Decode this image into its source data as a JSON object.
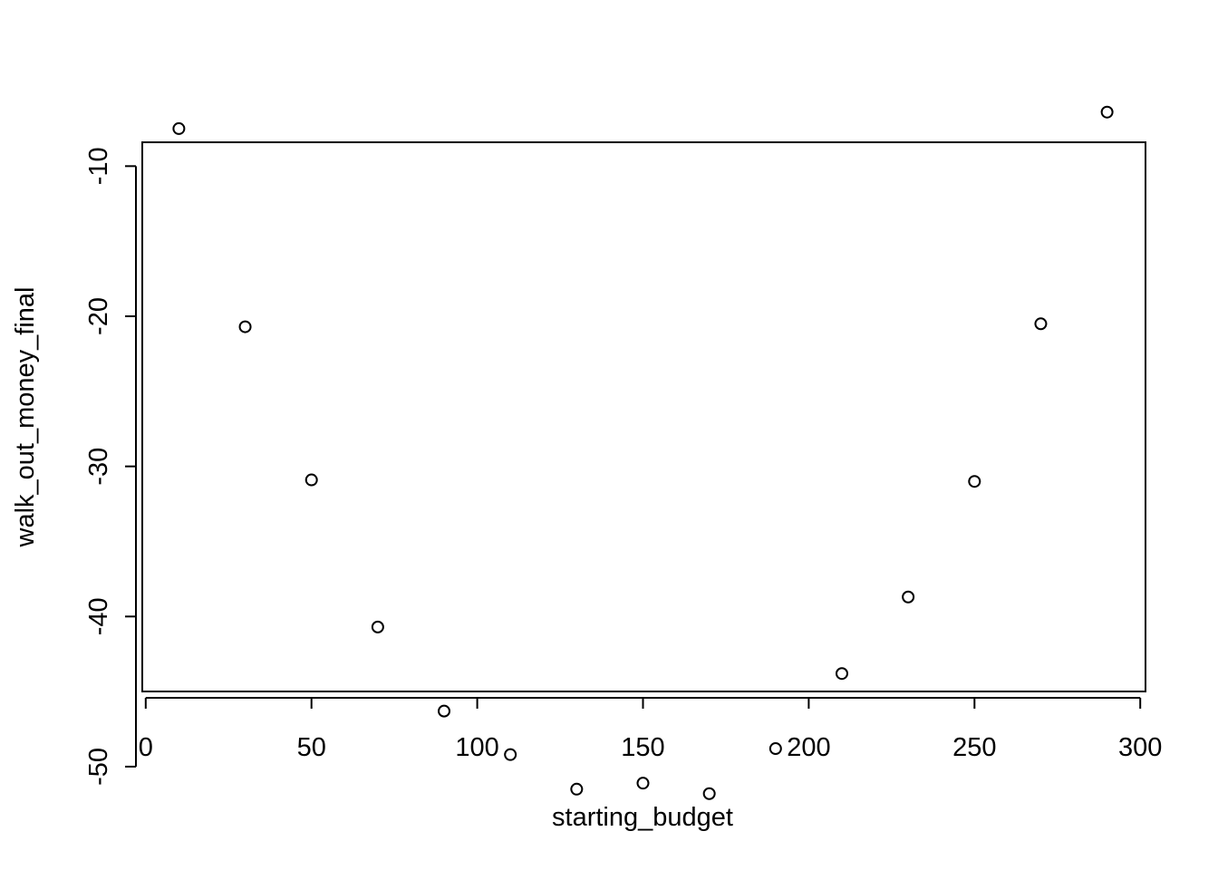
{
  "chart_data": {
    "type": "scatter",
    "title": "",
    "xlabel": "starting_budget",
    "ylabel": "walk_out_money_final",
    "xlim": [
      0,
      300
    ],
    "ylim": [
      -54,
      -5
    ],
    "x_ticks": [
      0,
      50,
      100,
      150,
      200,
      250,
      300
    ],
    "x_tick_labels": [
      "0",
      "50",
      "100",
      "150",
      "200",
      "250",
      "300"
    ],
    "y_ticks": [
      -50,
      -40,
      -30,
      -20,
      -10
    ],
    "y_tick_labels": [
      "-50",
      "-40",
      "-30",
      "-20",
      "-10"
    ],
    "grid": false,
    "legend": "none",
    "marker": "open-circle",
    "series": [
      {
        "x": [
          10,
          30,
          50,
          70,
          90,
          110,
          130,
          150,
          170,
          190,
          210,
          230,
          250,
          270,
          290
        ],
        "y": [
          -7.5,
          -20.7,
          -30.9,
          -40.7,
          -46.3,
          -49.2,
          -51.5,
          -51.1,
          -51.8,
          -48.8,
          -43.8,
          -38.7,
          -31.0,
          -20.5,
          -6.4
        ]
      }
    ]
  }
}
